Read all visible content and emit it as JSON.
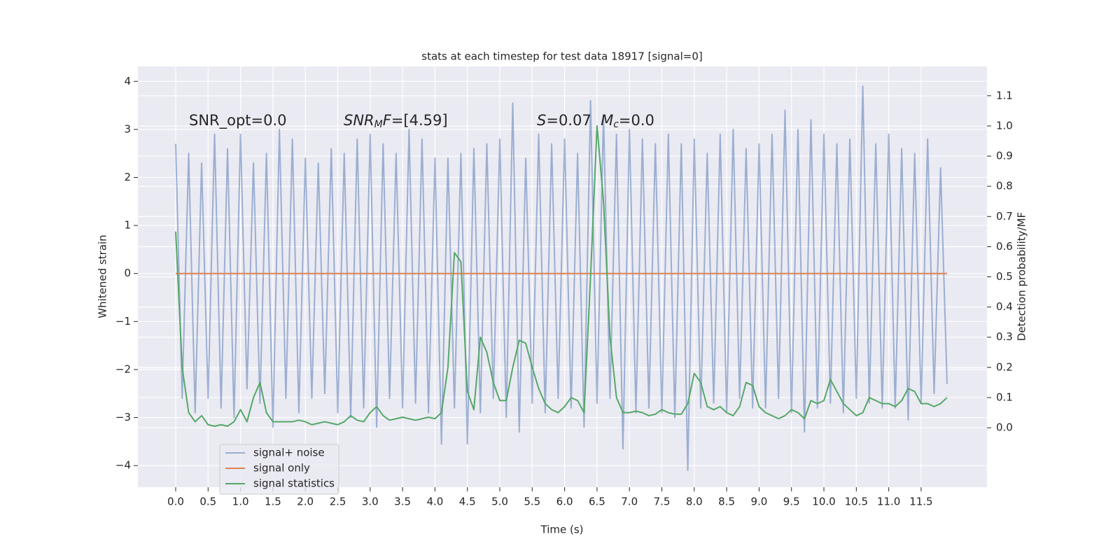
{
  "chart_data": {
    "type": "line",
    "title": "stats at each timestep for test data 18917 [signal=0]",
    "xlabel": "Time (s)",
    "ylabel": "Whitened strain",
    "y2label": "Detection probability/MF",
    "x": [
      0.0,
      0.1,
      0.2,
      0.3,
      0.4,
      0.5,
      0.6,
      0.7,
      0.8,
      0.9,
      1.0,
      1.1,
      1.2,
      1.3,
      1.4,
      1.5,
      1.6,
      1.7,
      1.8,
      1.9,
      2.0,
      2.1,
      2.2,
      2.3,
      2.4,
      2.5,
      2.6,
      2.7,
      2.8,
      2.9,
      3.0,
      3.1,
      3.2,
      3.3,
      3.4,
      3.5,
      3.6,
      3.7,
      3.8,
      3.9,
      4.0,
      4.1,
      4.2,
      4.3,
      4.4,
      4.5,
      4.6,
      4.7,
      4.8,
      4.9,
      5.0,
      5.1,
      5.2,
      5.3,
      5.4,
      5.5,
      5.6,
      5.7,
      5.8,
      5.9,
      6.0,
      6.1,
      6.2,
      6.3,
      6.4,
      6.5,
      6.6,
      6.7,
      6.8,
      6.9,
      7.0,
      7.1,
      7.2,
      7.3,
      7.4,
      7.5,
      7.6,
      7.7,
      7.8,
      7.9,
      8.0,
      8.1,
      8.2,
      8.3,
      8.4,
      8.5,
      8.6,
      8.7,
      8.8,
      8.9,
      9.0,
      9.1,
      9.2,
      9.3,
      9.4,
      9.5,
      9.6,
      9.7,
      9.8,
      9.9,
      10.0,
      10.1,
      10.2,
      10.3,
      10.4,
      10.5,
      10.6,
      10.7,
      10.8,
      10.9,
      11.0,
      11.1,
      11.2,
      11.3,
      11.4,
      11.5,
      11.6,
      11.7,
      11.8,
      11.9
    ],
    "series": [
      {
        "name": "signal+ noise",
        "color": "#4c72b0",
        "opacity": 0.5,
        "axis": "y",
        "values": [
          2.7,
          -2.6,
          2.5,
          -2.9,
          2.3,
          -2.6,
          2.9,
          -2.8,
          2.6,
          -3.0,
          2.9,
          -2.4,
          2.3,
          -2.7,
          2.5,
          -3.2,
          3.0,
          -2.6,
          2.8,
          -2.9,
          2.4,
          -2.6,
          2.3,
          -2.5,
          2.6,
          -2.9,
          2.5,
          -3.0,
          2.8,
          -2.8,
          2.9,
          -3.2,
          2.7,
          -2.6,
          2.5,
          -2.8,
          3.0,
          -2.7,
          2.8,
          -2.9,
          2.4,
          -3.55,
          2.4,
          -2.8,
          2.5,
          -3.55,
          2.6,
          -2.9,
          2.7,
          -2.6,
          2.8,
          -3.0,
          3.55,
          -3.3,
          2.4,
          -2.7,
          2.9,
          -2.9,
          2.7,
          -2.6,
          2.8,
          -2.8,
          2.5,
          -3.2,
          3.6,
          -2.7,
          3.3,
          -2.6,
          2.9,
          -3.65,
          3.0,
          -2.9,
          2.8,
          -2.8,
          2.7,
          -2.9,
          2.9,
          -3.0,
          2.7,
          -4.1,
          2.8,
          -2.8,
          2.5,
          -2.7,
          2.9,
          -2.9,
          3.0,
          -2.6,
          2.6,
          -2.8,
          2.7,
          -2.8,
          2.9,
          -2.6,
          3.4,
          -2.9,
          3.0,
          -3.3,
          3.2,
          -2.8,
          2.9,
          -2.7,
          2.7,
          -2.9,
          2.8,
          -2.6,
          3.9,
          -2.7,
          2.7,
          -2.8,
          2.9,
          -2.8,
          2.6,
          -3.05,
          2.5,
          -2.7,
          2.8,
          -2.5,
          2.2,
          -2.3
        ]
      },
      {
        "name": "signal only",
        "color": "#dd8452",
        "axis": "y",
        "x": [
          0.0,
          11.9
        ],
        "values": [
          0.0,
          0.0
        ]
      },
      {
        "name": "signal statistics",
        "color": "#55a868",
        "axis": "y2",
        "values": [
          0.65,
          0.2,
          0.05,
          0.02,
          0.04,
          0.01,
          0.005,
          0.01,
          0.005,
          0.02,
          0.06,
          0.02,
          0.1,
          0.15,
          0.05,
          0.02,
          0.02,
          0.02,
          0.02,
          0.025,
          0.02,
          0.01,
          0.015,
          0.02,
          0.015,
          0.01,
          0.02,
          0.04,
          0.025,
          0.02,
          0.05,
          0.07,
          0.04,
          0.025,
          0.03,
          0.035,
          0.03,
          0.025,
          0.03,
          0.035,
          0.03,
          0.05,
          0.2,
          0.58,
          0.55,
          0.12,
          0.06,
          0.3,
          0.25,
          0.15,
          0.09,
          0.09,
          0.2,
          0.29,
          0.28,
          0.2,
          0.13,
          0.08,
          0.06,
          0.05,
          0.07,
          0.1,
          0.09,
          0.05,
          0.5,
          1.0,
          0.75,
          0.3,
          0.1,
          0.05,
          0.05,
          0.055,
          0.05,
          0.04,
          0.045,
          0.06,
          0.05,
          0.045,
          0.045,
          0.08,
          0.18,
          0.15,
          0.07,
          0.06,
          0.07,
          0.05,
          0.04,
          0.07,
          0.15,
          0.14,
          0.07,
          0.05,
          0.04,
          0.03,
          0.04,
          0.06,
          0.05,
          0.03,
          0.09,
          0.08,
          0.09,
          0.16,
          0.12,
          0.08,
          0.06,
          0.04,
          0.05,
          0.1,
          0.09,
          0.08,
          0.08,
          0.07,
          0.09,
          0.13,
          0.12,
          0.08,
          0.08,
          0.07,
          0.08,
          0.1
        ]
      }
    ],
    "xlim": [
      -0.583,
      12.516
    ],
    "ylim": [
      -4.45,
      4.31
    ],
    "y2lim": [
      -0.197,
      1.197
    ],
    "xticks": [
      {
        "value": 0,
        "label": "0.0"
      },
      {
        "value": 0.5,
        "label": "0.5"
      },
      {
        "value": 1,
        "label": "1.0"
      },
      {
        "value": 1.5,
        "label": "1.5"
      },
      {
        "value": 2,
        "label": "2.0"
      },
      {
        "value": 2.5,
        "label": "2.5"
      },
      {
        "value": 3,
        "label": "3.0"
      },
      {
        "value": 3.5,
        "label": "3.5"
      },
      {
        "value": 4,
        "label": "4.0"
      },
      {
        "value": 4.5,
        "label": "4.5"
      },
      {
        "value": 5,
        "label": "5.0"
      },
      {
        "value": 5.5,
        "label": "5.5"
      },
      {
        "value": 6,
        "label": "6.0"
      },
      {
        "value": 6.5,
        "label": "6.5"
      },
      {
        "value": 7,
        "label": "7.0"
      },
      {
        "value": 7.5,
        "label": "7.5"
      },
      {
        "value": 8,
        "label": "8.0"
      },
      {
        "value": 8.5,
        "label": "8.5"
      },
      {
        "value": 9,
        "label": "9.0"
      },
      {
        "value": 9.5,
        "label": "9.5"
      },
      {
        "value": 10,
        "label": "10.0"
      },
      {
        "value": 10.5,
        "label": "10.5"
      },
      {
        "value": 11,
        "label": "11.0"
      },
      {
        "value": 11.5,
        "label": "11.5"
      }
    ],
    "yticks": [
      {
        "value": -4,
        "label": "−4"
      },
      {
        "value": -3,
        "label": "−3"
      },
      {
        "value": -2,
        "label": "−2"
      },
      {
        "value": -1,
        "label": "−1"
      },
      0,
      1,
      2,
      3,
      4
    ],
    "y2ticks": [
      {
        "value": 0,
        "label": "0.0"
      },
      0.1,
      0.2,
      0.3,
      0.4,
      0.5,
      0.6,
      0.7,
      0.8,
      0.9,
      {
        "value": 1,
        "label": "1.0"
      },
      1.1
    ],
    "grid": true,
    "legend_loc": "lower left",
    "annotations": [
      {
        "parts": [
          {
            "text": "SNR_opt=0.0",
            "style": "normal"
          }
        ]
      },
      {
        "parts": [
          {
            "text": "SNR",
            "style": "italic"
          },
          {
            "text": "M",
            "style": "italic-sub"
          },
          {
            "text": "F",
            "style": "italic"
          },
          {
            "text": "=[4.59]",
            "style": "normal"
          }
        ]
      },
      {
        "parts": [
          {
            "text": "S",
            "style": "italic"
          },
          {
            "text": "=0.07  ",
            "style": "normal"
          },
          {
            "text": "M",
            "style": "italic"
          },
          {
            "text": "c",
            "style": "italic-sub"
          },
          {
            "text": "=0.0",
            "style": "normal"
          }
        ]
      }
    ]
  }
}
